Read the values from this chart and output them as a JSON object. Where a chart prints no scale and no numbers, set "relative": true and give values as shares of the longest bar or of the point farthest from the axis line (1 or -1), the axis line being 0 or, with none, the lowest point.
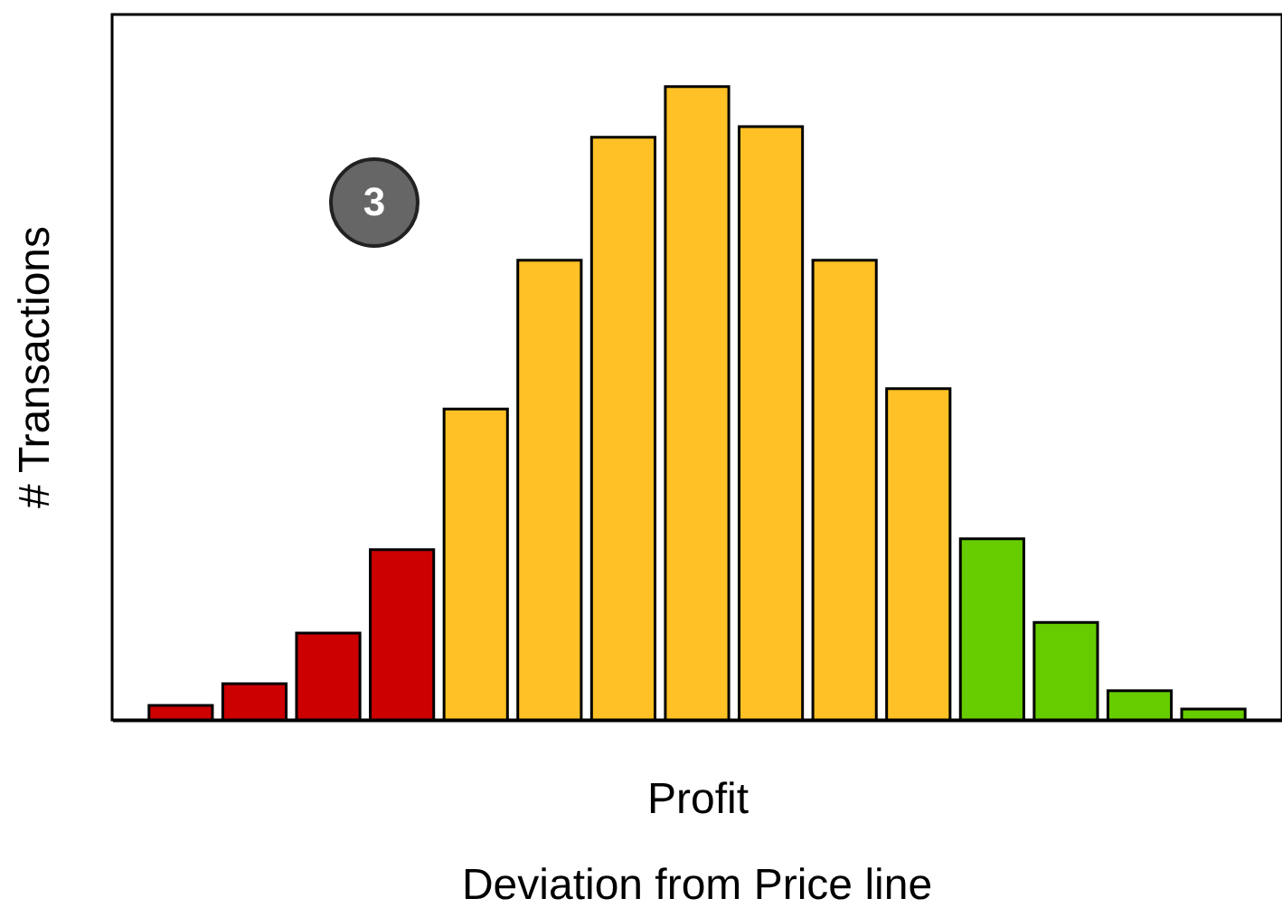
{
  "chart_data": {
    "type": "bar",
    "relative": true,
    "xlabel": "Profit",
    "ylabel": "# Transactions",
    "annotations": [
      "3",
      "Deviation from Price line"
    ],
    "categories": [
      null,
      null,
      null,
      null,
      null,
      null,
      null,
      null,
      null,
      null,
      null,
      null,
      null,
      null,
      null
    ],
    "values": [
      0.023,
      0.057,
      0.137,
      0.269,
      0.491,
      0.726,
      0.92,
      1,
      0.937,
      0.726,
      0.523,
      0.286,
      0.154,
      0.046,
      0.017
    ],
    "colors": [
      "#cc0000",
      "#cc0000",
      "#cc0000",
      "#cc0000",
      "#ffc125",
      "#ffc125",
      "#ffc125",
      "#ffc125",
      "#ffc125",
      "#ffc125",
      "#ffc125",
      "#66cc00",
      "#66cc00",
      "#66cc00",
      "#66cc00"
    ],
    "grid": false
  }
}
